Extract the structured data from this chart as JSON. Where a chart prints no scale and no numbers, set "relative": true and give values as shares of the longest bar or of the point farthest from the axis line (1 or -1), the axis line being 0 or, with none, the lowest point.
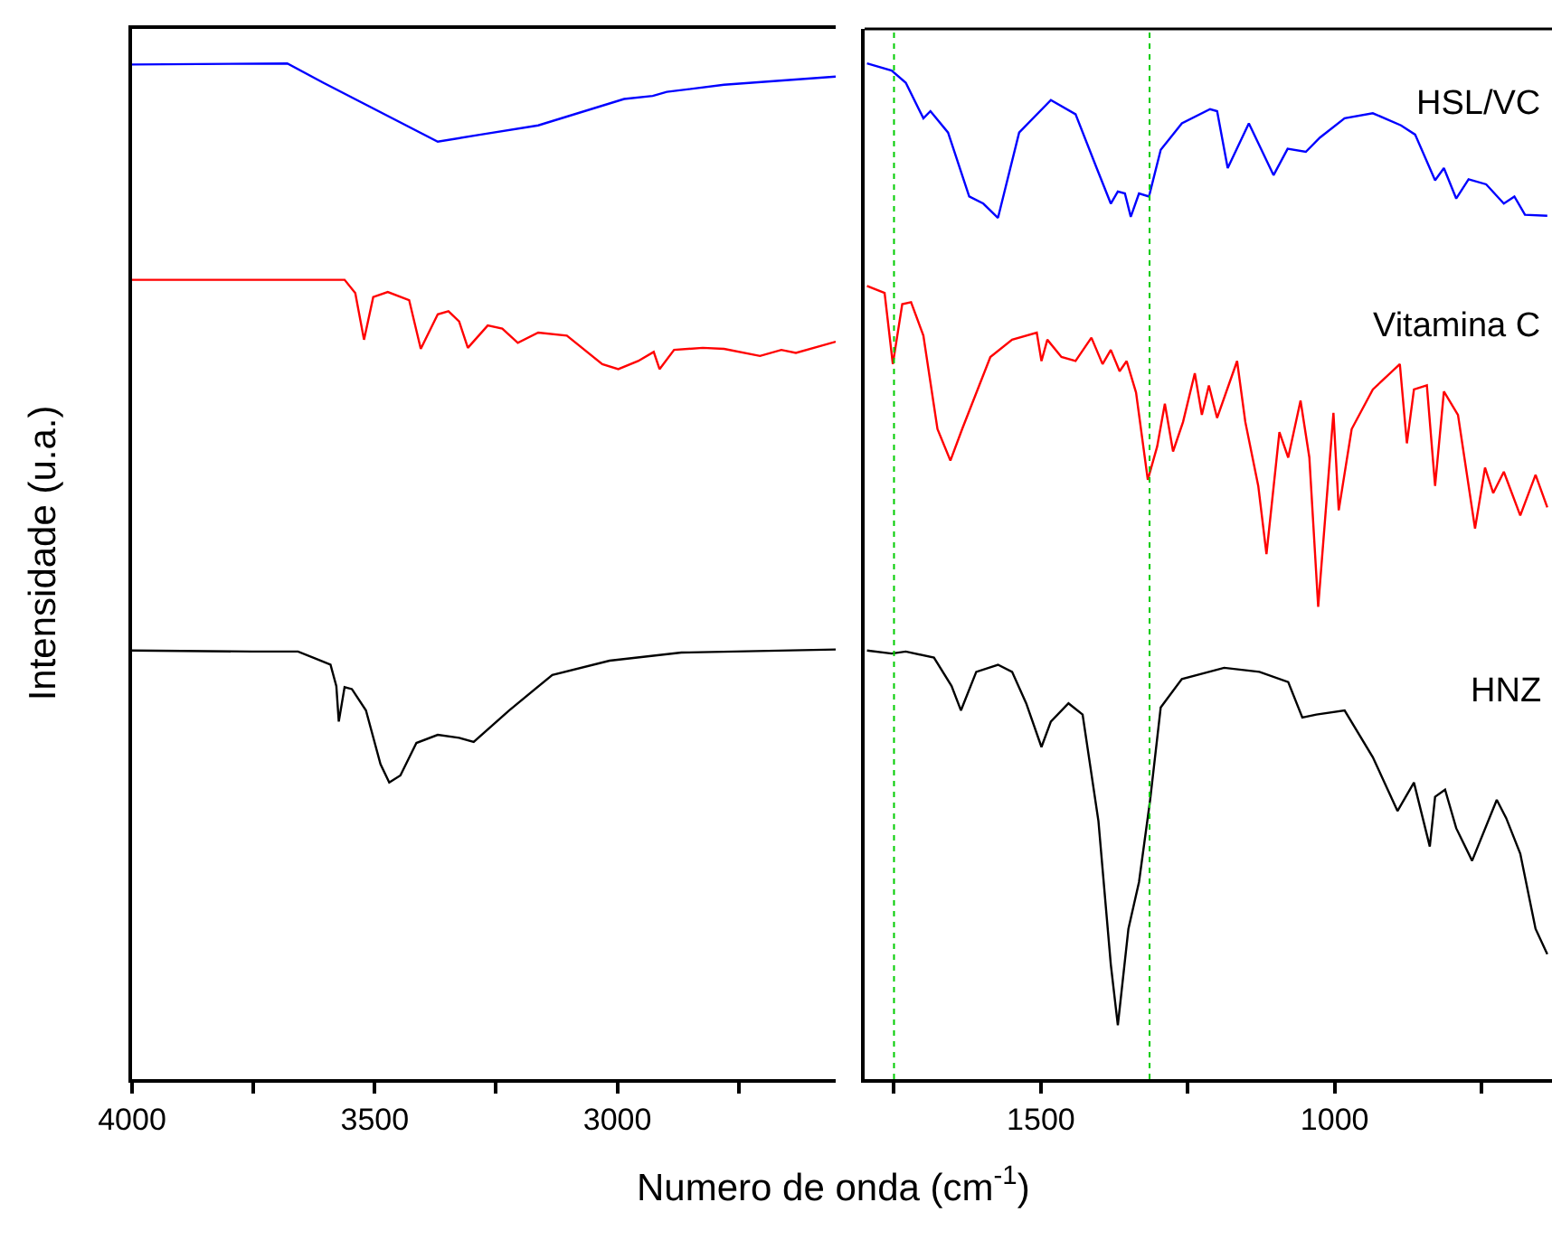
{
  "chart_data": [
    {
      "type": "line",
      "relative": true,
      "xlabel": "Numero de onda (cm$^{-1}$)",
      "ylabel": "Intensidade (u.a.)",
      "xlim": [
        4000,
        2550
      ],
      "xticks": [
        4000,
        {
          "value": 3750,
          "label": null
        },
        3500,
        {
          "value": 3250,
          "label": null
        },
        3000,
        {
          "value": 2750,
          "label": null
        }
      ],
      "tick_labels": "x",
      "legend": false,
      "marker": "none",
      "line_style": "solid",
      "series": [
        {
          "color": "#0000ff",
          "x": [
            4000,
            3680,
            3606,
            3370,
            3281,
            3163,
            2986,
            2927,
            2898,
            2780,
            2550
          ],
          "values": [
            0.999,
            1.0,
            0.981,
            0.923,
            0.93,
            0.939,
            0.965,
            0.968,
            0.972,
            0.979,
            0.987
          ]
        },
        {
          "color": "#ff0000",
          "x": [
            4000,
            3562,
            3540,
            3522,
            3503,
            3473,
            3429,
            3405,
            3370,
            3348,
            3326,
            3308,
            3267,
            3237,
            3205,
            3163,
            3104,
            3031,
            2998,
            2957,
            2925,
            2913,
            2883,
            2824,
            2780,
            2706,
            2662,
            2632,
            2550
          ],
          "values": [
            0.787,
            0.787,
            0.774,
            0.728,
            0.77,
            0.775,
            0.767,
            0.719,
            0.753,
            0.756,
            0.746,
            0.72,
            0.742,
            0.739,
            0.725,
            0.735,
            0.732,
            0.704,
            0.699,
            0.707,
            0.716,
            0.699,
            0.718,
            0.72,
            0.719,
            0.712,
            0.718,
            0.715,
            0.726
          ]
        },
        {
          "color": "#000000",
          "x": [
            4000,
            3753,
            3658,
            3621,
            3591,
            3579,
            3574,
            3562,
            3547,
            3518,
            3488,
            3470,
            3447,
            3414,
            3370,
            3326,
            3296,
            3223,
            3134,
            3016,
            2868,
            2550
          ],
          "values": [
            0.422,
            0.421,
            0.421,
            0.414,
            0.408,
            0.387,
            0.352,
            0.386,
            0.384,
            0.363,
            0.31,
            0.292,
            0.299,
            0.331,
            0.339,
            0.336,
            0.332,
            0.363,
            0.398,
            0.412,
            0.42,
            0.423
          ]
        }
      ]
    },
    {
      "type": "line",
      "relative": true,
      "xlim": [
        1800,
        630
      ],
      "xticks": [
        {
          "value": 1750,
          "label": null
        },
        1500,
        {
          "value": 1250,
          "label": null
        },
        1000,
        {
          "value": 750,
          "label": null
        }
      ],
      "tick_labels": "x",
      "legend": false,
      "marker": "none",
      "line_style": "solid",
      "ref_lines": [
        {
          "axis": "x",
          "value": 1750,
          "color": "#00cc00",
          "line_style": "dotted"
        },
        {
          "axis": "x",
          "value": 1315,
          "color": "#00cc00",
          "line_style": "dotted"
        }
      ],
      "series": [
        {
          "name": "HSL/VC",
          "color": "#0000ff",
          "x": [
            1796,
            1754,
            1730,
            1700,
            1688,
            1658,
            1622,
            1598,
            1573,
            1537,
            1483,
            1441,
            1405,
            1381,
            1369,
            1357,
            1347,
            1333,
            1316,
            1296,
            1260,
            1212,
            1200,
            1182,
            1146,
            1104,
            1080,
            1049,
            1025,
            983,
            935,
            887,
            863,
            829,
            814,
            793,
            772,
            742,
            712,
            694,
            676,
            638
          ],
          "values": [
            1.0,
            0.993,
            0.981,
            0.946,
            0.953,
            0.932,
            0.869,
            0.862,
            0.848,
            0.932,
            0.964,
            0.95,
            0.897,
            0.862,
            0.874,
            0.872,
            0.849,
            0.872,
            0.869,
            0.915,
            0.941,
            0.955,
            0.953,
            0.897,
            0.941,
            0.89,
            0.916,
            0.913,
            0.927,
            0.946,
            0.951,
            0.939,
            0.93,
            0.885,
            0.897,
            0.867,
            0.886,
            0.881,
            0.862,
            0.869,
            0.851,
            0.85
          ]
        },
        {
          "name": "Vitamina C",
          "color": "#ff0000",
          "x": [
            1796,
            1766,
            1752,
            1736,
            1721,
            1700,
            1676,
            1654,
            1634,
            1586,
            1549,
            1507,
            1499,
            1489,
            1465,
            1441,
            1414,
            1395,
            1381,
            1366,
            1354,
            1338,
            1318,
            1302,
            1289,
            1275,
            1258,
            1238,
            1226,
            1214,
            1200,
            1166,
            1152,
            1130,
            1116,
            1094,
            1079,
            1058,
            1043,
            1028,
            1002,
            993,
            971,
            935,
            889,
            877,
            865,
            843,
            829,
            814,
            790,
            761,
            744,
            730,
            712,
            684,
            658,
            638
          ],
          "values": [
            0.781,
            0.774,
            0.704,
            0.763,
            0.765,
            0.732,
            0.64,
            0.609,
            0.64,
            0.711,
            0.728,
            0.735,
            0.707,
            0.728,
            0.711,
            0.707,
            0.73,
            0.704,
            0.718,
            0.697,
            0.707,
            0.676,
            0.59,
            0.623,
            0.665,
            0.618,
            0.647,
            0.695,
            0.654,
            0.683,
            0.651,
            0.707,
            0.647,
            0.584,
            0.517,
            0.637,
            0.612,
            0.668,
            0.612,
            0.465,
            0.656,
            0.56,
            0.64,
            0.679,
            0.704,
            0.626,
            0.679,
            0.683,
            0.584,
            0.677,
            0.654,
            0.542,
            0.602,
            0.577,
            0.598,
            0.555,
            0.595,
            0.563
          ]
        },
        {
          "name": "HNZ",
          "color": "#000000",
          "x": [
            1796,
            1754,
            1730,
            1682,
            1652,
            1636,
            1610,
            1573,
            1549,
            1525,
            1499,
            1483,
            1453,
            1429,
            1402,
            1381,
            1369,
            1351,
            1333,
            1314,
            1296,
            1260,
            1188,
            1128,
            1079,
            1055,
            1031,
            983,
            935,
            893,
            865,
            838,
            829,
            812,
            793,
            766,
            724,
            708,
            684,
            658,
            638
          ],
          "values": [
            0.422,
            0.419,
            0.421,
            0.415,
            0.387,
            0.363,
            0.401,
            0.408,
            0.401,
            0.37,
            0.327,
            0.352,
            0.37,
            0.359,
            0.254,
            0.113,
            0.053,
            0.148,
            0.194,
            0.275,
            0.366,
            0.394,
            0.405,
            0.401,
            0.391,
            0.356,
            0.359,
            0.363,
            0.317,
            0.264,
            0.292,
            0.229,
            0.278,
            0.285,
            0.247,
            0.215,
            0.275,
            0.257,
            0.222,
            0.148,
            0.123
          ]
        }
      ]
    }
  ]
}
